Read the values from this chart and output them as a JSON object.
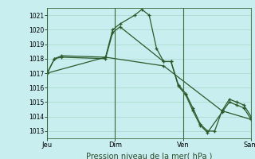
{
  "xlabel": "Pression niveau de la mer( hPa )",
  "bg_color": "#c8eef0",
  "grid_color": "#a8d8c8",
  "line_color": "#2a5a2a",
  "ylim": [
    1012.5,
    1021.5
  ],
  "yticks": [
    1013,
    1014,
    1015,
    1016,
    1017,
    1018,
    1019,
    1020,
    1021
  ],
  "day_labels": [
    "Jeu",
    "Dim",
    "Ven",
    "Sam"
  ],
  "day_positions": [
    0,
    0.333,
    0.667,
    1.0
  ],
  "vline_positions": [
    0.0,
    0.333,
    0.667,
    1.0
  ],
  "series1_x": [
    0.0,
    0.036,
    0.071,
    0.286,
    0.321,
    0.357,
    0.429,
    0.464,
    0.5,
    0.536,
    0.571,
    0.607,
    0.643,
    0.679,
    0.714,
    0.75,
    0.786,
    0.821,
    0.857,
    0.893,
    0.929,
    0.964,
    1.0
  ],
  "series1_y": [
    1017.0,
    1018.0,
    1018.2,
    1018.1,
    1020.0,
    1020.4,
    1021.0,
    1021.4,
    1021.0,
    1018.7,
    1017.8,
    1017.8,
    1016.2,
    1015.6,
    1014.6,
    1013.5,
    1013.0,
    1013.0,
    1014.4,
    1015.2,
    1015.0,
    1014.8,
    1014.0
  ],
  "series2_x": [
    0.0,
    0.036,
    0.071,
    0.286,
    0.321,
    0.357,
    0.571,
    0.607,
    0.643,
    0.679,
    0.714,
    0.75,
    0.786,
    0.857,
    0.893,
    0.929,
    0.964,
    1.0
  ],
  "series2_y": [
    1017.0,
    1018.0,
    1018.1,
    1018.0,
    1019.8,
    1020.2,
    1017.8,
    1017.8,
    1016.1,
    1015.5,
    1014.4,
    1013.4,
    1012.9,
    1014.3,
    1015.0,
    1014.8,
    1014.6,
    1013.8
  ],
  "series3_x": [
    0.0,
    0.286,
    0.571,
    0.857,
    1.0
  ],
  "series3_y": [
    1017.0,
    1018.1,
    1017.5,
    1014.4,
    1013.8
  ],
  "xmin": 0.0,
  "xmax": 1.0
}
